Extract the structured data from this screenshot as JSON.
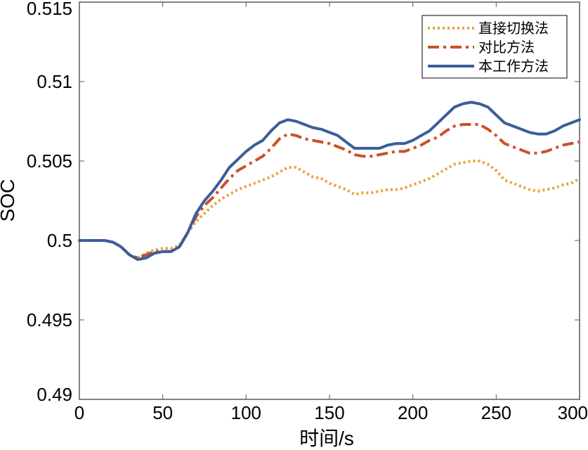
{
  "chart_data": {
    "type": "line",
    "title": "",
    "xlabel": "时间/s",
    "ylabel": "SOC",
    "xlim": [
      0,
      300
    ],
    "ylim": [
      0.49,
      0.515
    ],
    "xticks": [
      0,
      50,
      100,
      150,
      200,
      250,
      300
    ],
    "xtick_labels": [
      "0",
      "50",
      "100",
      "150",
      "200",
      "250",
      "300"
    ],
    "yticks": [
      0.49,
      0.495,
      0.5,
      0.505,
      0.51,
      0.515
    ],
    "ytick_labels": [
      "0.49",
      "0.495",
      "0.5",
      "0.505",
      "0.51",
      "0.515"
    ],
    "grid": false,
    "legend_position": "top-right",
    "x": [
      0,
      10,
      15,
      20,
      25,
      30,
      35,
      40,
      45,
      50,
      55,
      60,
      65,
      70,
      75,
      80,
      85,
      90,
      95,
      100,
      105,
      110,
      115,
      120,
      125,
      130,
      135,
      140,
      145,
      150,
      155,
      160,
      165,
      170,
      175,
      180,
      185,
      190,
      195,
      200,
      205,
      210,
      215,
      220,
      225,
      230,
      235,
      240,
      245,
      250,
      255,
      260,
      265,
      270,
      275,
      280,
      285,
      290,
      295,
      300
    ],
    "series": [
      {
        "name": "直接切换法",
        "color": "#E8A33D",
        "dash": "dotted",
        "values": [
          0.5,
          0.5,
          0.5,
          0.4999,
          0.4996,
          0.4991,
          0.4989,
          0.4992,
          0.4994,
          0.4995,
          0.4995,
          0.4997,
          0.5005,
          0.5012,
          0.5017,
          0.5022,
          0.5026,
          0.5029,
          0.5032,
          0.5034,
          0.5036,
          0.5038,
          0.504,
          0.5043,
          0.5046,
          0.5046,
          0.5043,
          0.504,
          0.5039,
          0.5036,
          0.5034,
          0.5032,
          0.5029,
          0.503,
          0.503,
          0.5031,
          0.5032,
          0.5032,
          0.5033,
          0.5035,
          0.5037,
          0.5039,
          0.5042,
          0.5045,
          0.5048,
          0.5049,
          0.505,
          0.505,
          0.5048,
          0.5044,
          0.5038,
          0.5036,
          0.5034,
          0.5032,
          0.5031,
          0.5032,
          0.5033,
          0.5035,
          0.5036,
          0.5039
        ]
      },
      {
        "name": "对比方法",
        "color": "#C9512A",
        "dash": "dashdot",
        "values": [
          0.5,
          0.5,
          0.5,
          0.4999,
          0.4996,
          0.4991,
          0.4989,
          0.4991,
          0.4993,
          0.4993,
          0.4993,
          0.4996,
          0.5005,
          0.5015,
          0.5022,
          0.5027,
          0.5033,
          0.5039,
          0.5044,
          0.5047,
          0.505,
          0.5053,
          0.5058,
          0.5064,
          0.5067,
          0.5066,
          0.5064,
          0.5063,
          0.5062,
          0.5061,
          0.5059,
          0.5057,
          0.5054,
          0.5053,
          0.5053,
          0.5054,
          0.5055,
          0.5056,
          0.5056,
          0.5058,
          0.506,
          0.5063,
          0.5065,
          0.5069,
          0.5072,
          0.5073,
          0.5073,
          0.5073,
          0.507,
          0.5066,
          0.5061,
          0.5059,
          0.5057,
          0.5055,
          0.5055,
          0.5056,
          0.5058,
          0.506,
          0.5061,
          0.5062
        ]
      },
      {
        "name": "本工作方法",
        "color": "#3C5E9A",
        "dash": "solid",
        "values": [
          0.5,
          0.5,
          0.5,
          0.4999,
          0.4996,
          0.4991,
          0.4988,
          0.4989,
          0.4992,
          0.4993,
          0.4993,
          0.4996,
          0.5005,
          0.5017,
          0.5025,
          0.5031,
          0.5038,
          0.5046,
          0.5051,
          0.5056,
          0.506,
          0.5063,
          0.5069,
          0.5074,
          0.5076,
          0.5075,
          0.5073,
          0.5071,
          0.507,
          0.5068,
          0.5066,
          0.5062,
          0.5058,
          0.5058,
          0.5058,
          0.5058,
          0.506,
          0.5061,
          0.5061,
          0.5063,
          0.5066,
          0.5069,
          0.5074,
          0.5079,
          0.5084,
          0.5086,
          0.5087,
          0.5086,
          0.5084,
          0.5079,
          0.5074,
          0.5072,
          0.507,
          0.5068,
          0.5067,
          0.5067,
          0.5069,
          0.5072,
          0.5074,
          0.5076
        ]
      }
    ]
  }
}
